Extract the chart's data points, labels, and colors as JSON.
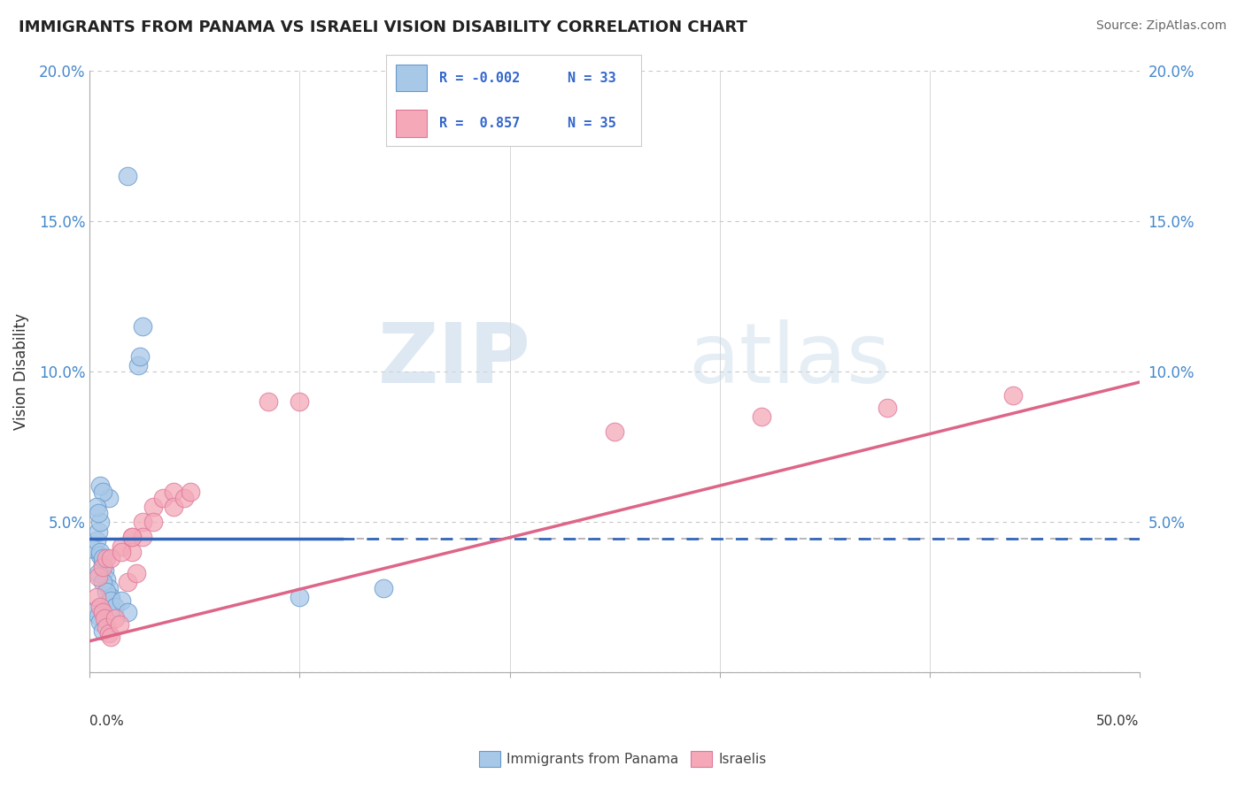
{
  "title": "IMMIGRANTS FROM PANAMA VS ISRAELI VISION DISABILITY CORRELATION CHART",
  "source": "Source: ZipAtlas.com",
  "ylabel": "Vision Disability",
  "xlim": [
    0.0,
    50.0
  ],
  "ylim": [
    0.0,
    20.0
  ],
  "yticks": [
    0.0,
    5.0,
    10.0,
    15.0,
    20.0
  ],
  "ytick_labels": [
    "",
    "5.0%",
    "10.0%",
    "15.0%",
    "20.0%"
  ],
  "watermark_zip": "ZIP",
  "watermark_atlas": "atlas",
  "series1_color": "#a8c8e8",
  "series2_color": "#f4a8b8",
  "series1_edge": "#6699cc",
  "series2_edge": "#dd7799",
  "trend1_color": "#3366bb",
  "trend2_color": "#dd6688",
  "trend1_slope": 0.0,
  "trend1_intercept": 4.45,
  "trend2_slope": 0.172,
  "trend2_intercept": 1.05,
  "blue_solid_end_x": 12.0,
  "dashed_line_y": 4.45,
  "blue_points_x": [
    1.8,
    2.5,
    2.3,
    2.4,
    0.2,
    0.3,
    0.4,
    0.5,
    0.5,
    0.6,
    0.7,
    0.8,
    0.9,
    1.0,
    0.3,
    0.4,
    0.5,
    0.6,
    0.4,
    0.6,
    0.8,
    1.0,
    0.9,
    0.5,
    0.6,
    0.3,
    0.4,
    0.5,
    0.6,
    1.2,
    1.5,
    1.8,
    10.0,
    14.0
  ],
  "blue_points_y": [
    16.5,
    11.5,
    10.2,
    10.5,
    4.1,
    4.4,
    4.7,
    5.0,
    3.9,
    3.6,
    3.4,
    3.1,
    2.8,
    2.5,
    2.1,
    1.9,
    1.7,
    1.4,
    3.3,
    3.0,
    2.7,
    2.4,
    5.8,
    6.2,
    6.0,
    5.5,
    5.3,
    4.0,
    3.8,
    2.2,
    2.4,
    2.0,
    2.5,
    2.8
  ],
  "pink_points_x": [
    0.3,
    0.5,
    0.6,
    0.7,
    0.8,
    0.9,
    1.0,
    1.2,
    1.4,
    0.4,
    0.6,
    0.8,
    1.5,
    2.0,
    2.5,
    3.0,
    1.8,
    2.2,
    3.5,
    4.0,
    2.0,
    2.5,
    3.0,
    4.0,
    1.0,
    1.5,
    2.0,
    10.0,
    25.0,
    32.0,
    38.0,
    44.0,
    4.5,
    4.8,
    8.5
  ],
  "pink_points_y": [
    2.5,
    2.2,
    2.0,
    1.8,
    1.5,
    1.3,
    1.2,
    1.8,
    1.6,
    3.2,
    3.5,
    3.8,
    4.2,
    4.5,
    5.0,
    5.5,
    3.0,
    3.3,
    5.8,
    6.0,
    4.0,
    4.5,
    5.0,
    5.5,
    3.8,
    4.0,
    4.5,
    9.0,
    8.0,
    8.5,
    8.8,
    9.2,
    5.8,
    6.0,
    9.0
  ],
  "background_color": "#ffffff",
  "grid_color": "#c8c8c8"
}
